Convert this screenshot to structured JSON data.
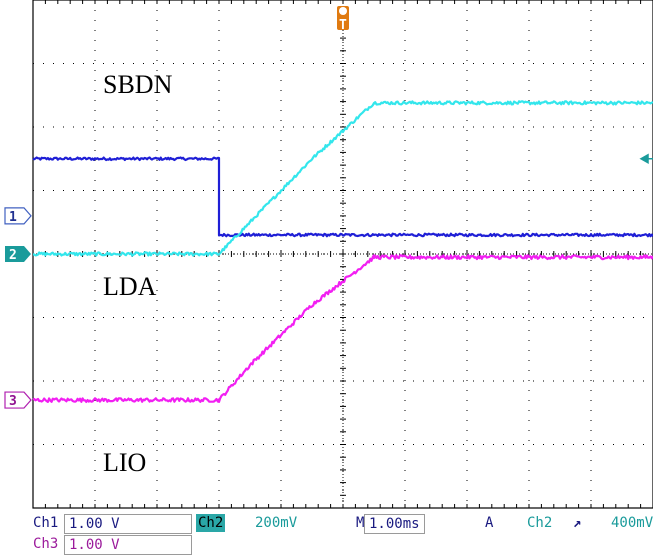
{
  "chart_data": {
    "type": "line",
    "title": "",
    "xlabel": "",
    "ylabel": "",
    "x_divisions": 10,
    "y_divisions": 8,
    "grid": true,
    "series": [
      {
        "name": "SBDN",
        "color": "#1f1fd6",
        "channel_marker": "",
        "points": [
          [
            0,
            1.5
          ],
          [
            3.0,
            1.5
          ],
          [
            3.0,
            0.3
          ],
          [
            10,
            0.3
          ]
        ],
        "noise": 0.02
      },
      {
        "name": "LDA",
        "color": "#33e6ec",
        "channel_marker": "2",
        "points": [
          [
            0,
            0.0
          ],
          [
            3.0,
            0.0
          ],
          [
            3.5,
            0.5
          ],
          [
            4.5,
            1.5
          ],
          [
            5.5,
            2.38
          ],
          [
            10,
            2.38
          ]
        ],
        "noise": 0.025
      },
      {
        "name": "LIO",
        "color": "#f21ff2",
        "channel_marker": "3",
        "points": [
          [
            0,
            -2.3
          ],
          [
            3.0,
            -2.3
          ],
          [
            3.5,
            -1.75
          ],
          [
            4.5,
            -0.8
          ],
          [
            5.5,
            -0.05
          ],
          [
            10,
            -0.05
          ]
        ],
        "noise": 0.03
      }
    ],
    "markers": {
      "trigger_label": "T",
      "ch1_label": "1",
      "ch2_label": "2",
      "ch3_label": "3"
    }
  },
  "status": {
    "ch1_label": "Ch1",
    "ch1_scale": "1.00 V",
    "ch2_label": "Ch2",
    "ch2_scale": "200mV",
    "time_prefix": "M",
    "time_scale": "1.00ms",
    "acq_prefix": "A",
    "trig_source": "Ch2",
    "trig_slope": "↗",
    "trig_level": "400mV",
    "ch3_label": "Ch3",
    "ch3_scale": "1.00 V"
  },
  "colors": {
    "grid": "#000000",
    "background": "#ffffff",
    "trigger": "#e07a10"
  }
}
